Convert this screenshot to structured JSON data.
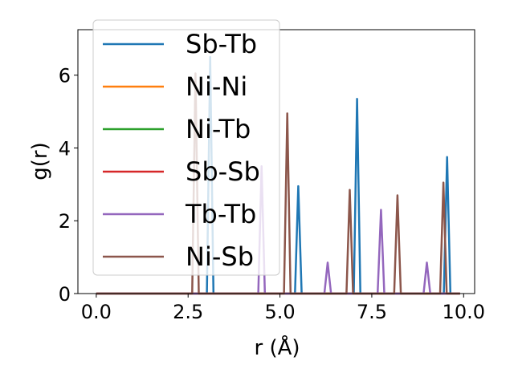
{
  "chart_data": {
    "type": "line",
    "title": "",
    "xlabel": "r (Å)",
    "ylabel": "g(r)",
    "xlim": [
      -0.5,
      10.3
    ],
    "ylim": [
      0,
      7.25
    ],
    "xticks": [
      {
        "value": 0.0,
        "label": "0.0"
      },
      {
        "value": 2.5,
        "label": "2.5"
      },
      {
        "value": 5.0,
        "label": "5.0"
      },
      {
        "value": 7.5,
        "label": "7.5"
      },
      {
        "value": 10.0,
        "label": "10.0"
      }
    ],
    "yticks": [
      {
        "value": 0,
        "label": "0"
      },
      {
        "value": 2,
        "label": "2"
      },
      {
        "value": 4,
        "label": "4"
      },
      {
        "value": 6,
        "label": "6"
      }
    ],
    "grid": false,
    "legend_position": "top-left",
    "r_range": [
      0,
      9.9
    ],
    "peak_half_width": 0.09,
    "series": [
      {
        "name": "Sb-Tb",
        "color": "#1f77b4",
        "peaks": [
          {
            "r": 3.1,
            "g": 6.5
          },
          {
            "r": 5.5,
            "g": 2.95
          },
          {
            "r": 7.1,
            "g": 5.35
          },
          {
            "r": 9.55,
            "g": 3.75
          }
        ]
      },
      {
        "name": "Ni-Ni",
        "color": "#ff7f0e",
        "peaks": []
      },
      {
        "name": "Ni-Tb",
        "color": "#2ca02c",
        "peaks": []
      },
      {
        "name": "Sb-Sb",
        "color": "#d62728",
        "peaks": []
      },
      {
        "name": "Tb-Tb",
        "color": "#9467bd",
        "peaks": [
          {
            "r": 4.5,
            "g": 3.5
          },
          {
            "r": 6.3,
            "g": 0.85
          },
          {
            "r": 7.75,
            "g": 2.3
          },
          {
            "r": 9.0,
            "g": 0.85
          }
        ]
      },
      {
        "name": "Ni-Sb",
        "color": "#8c564b",
        "peaks": [
          {
            "r": 2.7,
            "g": 6.05
          },
          {
            "r": 5.2,
            "g": 4.95
          },
          {
            "r": 6.9,
            "g": 2.85
          },
          {
            "r": 8.2,
            "g": 2.7
          },
          {
            "r": 9.45,
            "g": 3.05
          }
        ]
      }
    ]
  }
}
